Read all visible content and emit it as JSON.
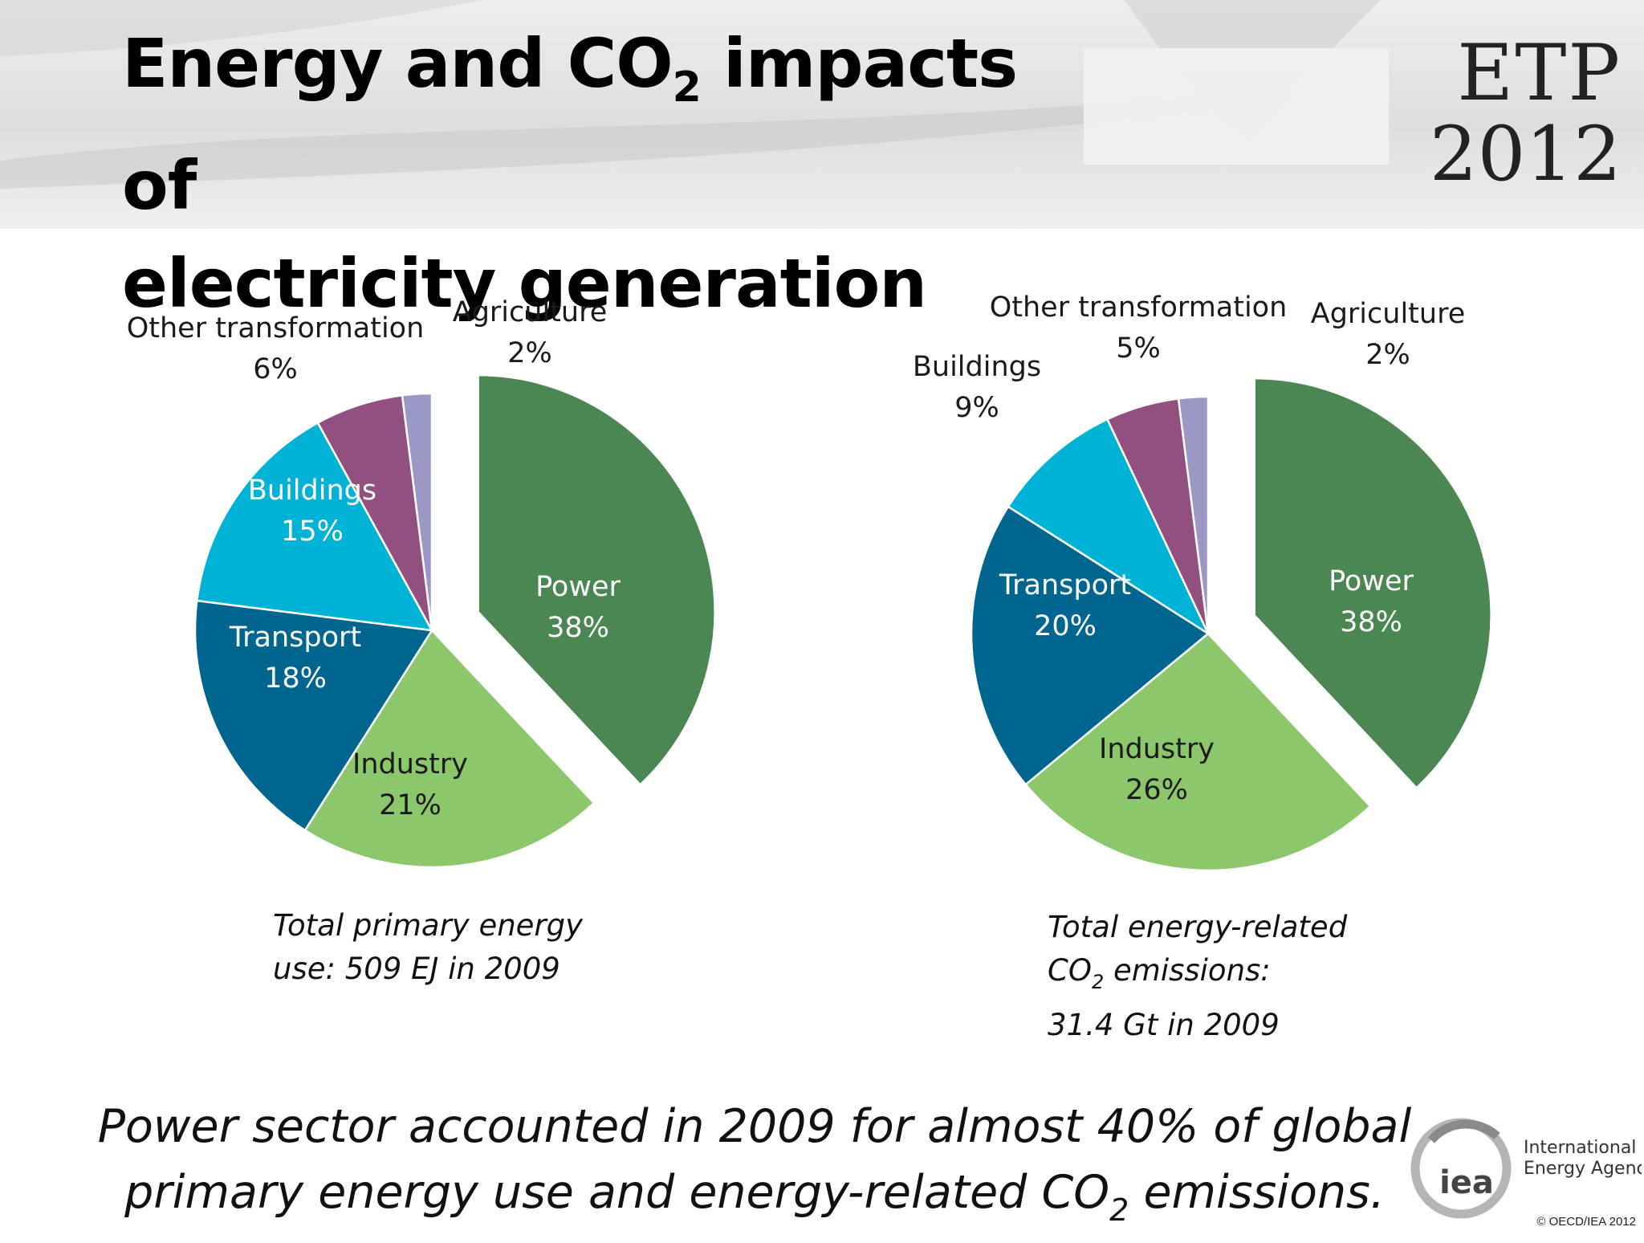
{
  "header": {
    "title_line1_prefix": "Energy and CO",
    "title_line1_sub": "2",
    "title_line1_suffix": " impacts of",
    "title_line2": "electricity generation",
    "etp_line1": "ETP",
    "etp_line2": "2012"
  },
  "chart_data": [
    {
      "type": "pie",
      "slices": [
        {
          "label": "Power",
          "value": 38,
          "value_label": "38%",
          "color": "#4a8752",
          "exploded": true
        },
        {
          "label": "Industry",
          "value": 21,
          "value_label": "21%",
          "color": "#8dc76b"
        },
        {
          "label": "Transport",
          "value": 18,
          "value_label": "18%",
          "color": "#00668f"
        },
        {
          "label": "Buildings",
          "value": 15,
          "value_label": "15%",
          "color": "#00b2d6"
        },
        {
          "label": "Other transformation",
          "value": 6,
          "value_label": "6%",
          "color": "#91507f"
        },
        {
          "label": "Agriculture",
          "value": 2,
          "value_label": "2%",
          "color": "#9c98c5"
        }
      ],
      "caption_line1": "Total primary energy",
      "caption_line2": "use: 509 EJ in 2009"
    },
    {
      "type": "pie",
      "slices": [
        {
          "label": "Power",
          "value": 38,
          "value_label": "38%",
          "color": "#4a8752",
          "exploded": true
        },
        {
          "label": "Industry",
          "value": 26,
          "value_label": "26%",
          "color": "#8dc76b"
        },
        {
          "label": "Transport",
          "value": 20,
          "value_label": "20%",
          "color": "#00668f"
        },
        {
          "label": "Buildings",
          "value": 9,
          "value_label": "9%",
          "color": "#00b2d6"
        },
        {
          "label": "Other transformation",
          "value": 5,
          "value_label": "5%",
          "color": "#91507f"
        },
        {
          "label": "Agriculture",
          "value": 2,
          "value_label": "2%",
          "color": "#9c98c5"
        }
      ],
      "caption_line1": "Total energy-related",
      "caption_line2_prefix": "CO",
      "caption_line2_sub": "2",
      "caption_line2_suffix": " emissions:",
      "caption_line3": "31.4 Gt in 2009"
    }
  ],
  "conclusion": {
    "line1": "Power sector accounted in 2009 for almost 40% of global",
    "line2_prefix": "primary energy use and energy-related CO",
    "line2_sub": "2",
    "line2_suffix": " emissions."
  },
  "footer": {
    "logo_text": "iea",
    "org_line1": "International",
    "org_line2": "Energy Agency",
    "copyright": "© OECD/IEA 2012"
  }
}
